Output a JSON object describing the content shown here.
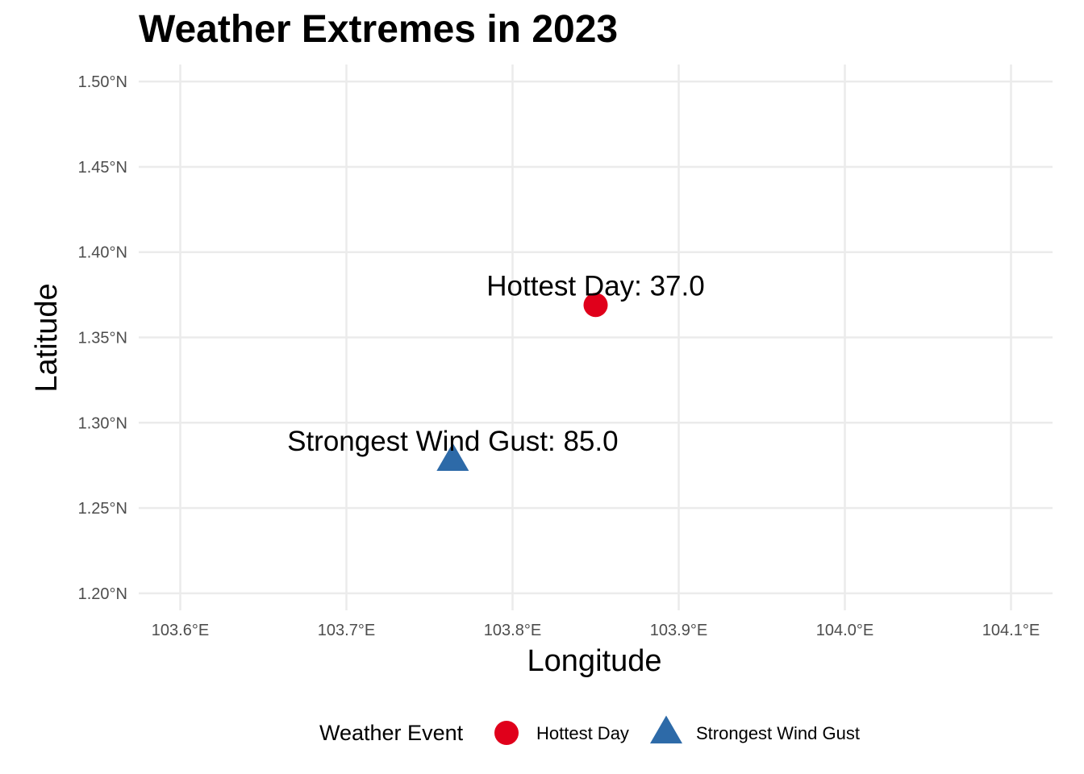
{
  "chart_data": {
    "type": "scatter",
    "title": "Weather Extremes in 2023",
    "xlabel": "Longitude",
    "ylabel": "Latitude",
    "xlim": [
      103.575,
      104.125
    ],
    "ylim": [
      1.19,
      1.51
    ],
    "x_ticks": [
      {
        "value": 103.6,
        "label": "103.6°E"
      },
      {
        "value": 103.7,
        "label": "103.7°E"
      },
      {
        "value": 103.8,
        "label": "103.8°E"
      },
      {
        "value": 103.9,
        "label": "103.9°E"
      },
      {
        "value": 104.0,
        "label": "104.0°E"
      },
      {
        "value": 104.1,
        "label": "104.1°E"
      }
    ],
    "y_ticks": [
      {
        "value": 1.2,
        "label": "1.20°N"
      },
      {
        "value": 1.25,
        "label": "1.25°N"
      },
      {
        "value": 1.3,
        "label": "1.30°N"
      },
      {
        "value": 1.35,
        "label": "1.35°N"
      },
      {
        "value": 1.4,
        "label": "1.40°N"
      },
      {
        "value": 1.45,
        "label": "1.45°N"
      },
      {
        "value": 1.5,
        "label": "1.50°N"
      }
    ],
    "grid": true,
    "legend": {
      "title": "Weather Event",
      "position": "bottom",
      "entries": [
        {
          "label": "Hottest Day",
          "shape": "circle",
          "color": "#e0001b"
        },
        {
          "label": "Strongest Wind Gust",
          "shape": "triangle",
          "color": "#2d6aa8"
        }
      ]
    },
    "points": [
      {
        "series": "Hottest Day",
        "x": 103.85,
        "y": 1.369,
        "label": "Hottest Day: 37.0"
      },
      {
        "series": "Strongest Wind Gust",
        "x": 103.764,
        "y": 1.278,
        "label": "Strongest Wind Gust: 85.0"
      }
    ]
  }
}
